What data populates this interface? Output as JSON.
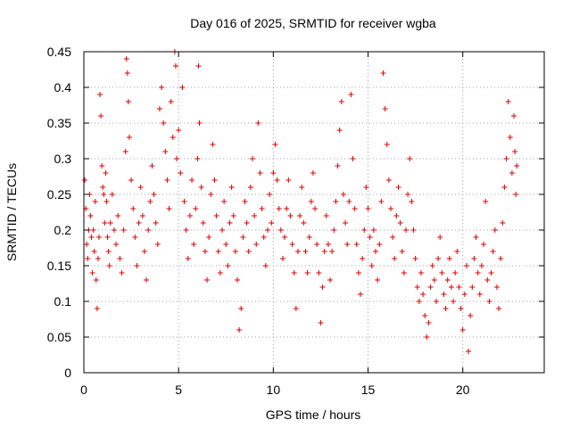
{
  "chart_data": {
    "type": "scatter",
    "title": "Day 016 of 2025, SRMTID for receiver wgba",
    "xlabel": "GPS time / hours",
    "ylabel": "SRMTID / TECUs",
    "xlim": [
      0,
      24.3
    ],
    "ylim": [
      0,
      0.45
    ],
    "grid": true,
    "marker": "plus",
    "color": "#e00000",
    "x_ticks": [
      0,
      5,
      10,
      15,
      20
    ],
    "y_ticks": [
      0,
      0.05,
      0.1,
      0.15,
      0.2,
      0.25,
      0.3,
      0.35,
      0.4,
      0.45
    ],
    "x_tick_labels": [
      "0",
      "5",
      "10",
      "15",
      "20"
    ],
    "y_tick_labels": [
      "0",
      "0.05",
      "0.1",
      "0.15",
      "0.2",
      "0.25",
      "0.3",
      "0.35",
      "0.4",
      "0.45"
    ],
    "series": [
      {
        "name": "SRMTID",
        "points": [
          [
            0.05,
            0.27
          ],
          [
            0.1,
            0.23
          ],
          [
            0.15,
            0.18
          ],
          [
            0.2,
            0.16
          ],
          [
            0.25,
            0.2
          ],
          [
            0.3,
            0.25
          ],
          [
            0.35,
            0.22
          ],
          [
            0.4,
            0.19
          ],
          [
            0.45,
            0.14
          ],
          [
            0.5,
            0.2
          ],
          [
            0.55,
            0.17
          ],
          [
            0.6,
            0.24
          ],
          [
            0.65,
            0.13
          ],
          [
            0.7,
            0.09
          ],
          [
            0.75,
            0.16
          ],
          [
            0.8,
            0.19
          ],
          [
            0.85,
            0.39
          ],
          [
            0.9,
            0.36
          ],
          [
            0.95,
            0.29
          ],
          [
            1.0,
            0.26
          ],
          [
            1.05,
            0.25
          ],
          [
            1.1,
            0.21
          ],
          [
            1.15,
            0.28
          ],
          [
            1.2,
            0.24
          ],
          [
            1.25,
            0.19
          ],
          [
            1.3,
            0.17
          ],
          [
            1.35,
            0.15
          ],
          [
            1.4,
            0.21
          ],
          [
            1.5,
            0.25
          ],
          [
            1.6,
            0.2
          ],
          [
            1.7,
            0.18
          ],
          [
            1.8,
            0.22
          ],
          [
            1.9,
            0.16
          ],
          [
            2.0,
            0.14
          ],
          [
            2.1,
            0.2
          ],
          [
            2.2,
            0.31
          ],
          [
            2.25,
            0.44
          ],
          [
            2.3,
            0.42
          ],
          [
            2.35,
            0.38
          ],
          [
            2.4,
            0.33
          ],
          [
            2.5,
            0.27
          ],
          [
            2.6,
            0.23
          ],
          [
            2.7,
            0.19
          ],
          [
            2.8,
            0.15
          ],
          [
            2.9,
            0.21
          ],
          [
            3.0,
            0.26
          ],
          [
            3.1,
            0.22
          ],
          [
            3.2,
            0.17
          ],
          [
            3.3,
            0.13
          ],
          [
            3.4,
            0.2
          ],
          [
            3.5,
            0.24
          ],
          [
            3.6,
            0.29
          ],
          [
            3.7,
            0.25
          ],
          [
            3.8,
            0.21
          ],
          [
            3.9,
            0.18
          ],
          [
            4.0,
            0.37
          ],
          [
            4.1,
            0.4
          ],
          [
            4.2,
            0.35
          ],
          [
            4.3,
            0.31
          ],
          [
            4.4,
            0.27
          ],
          [
            4.5,
            0.23
          ],
          [
            4.6,
            0.38
          ],
          [
            4.7,
            0.33
          ],
          [
            4.8,
            0.45
          ],
          [
            4.85,
            0.43
          ],
          [
            4.9,
            0.3
          ],
          [
            5.0,
            0.34
          ],
          [
            5.1,
            0.28
          ],
          [
            5.2,
            0.4
          ],
          [
            5.3,
            0.24
          ],
          [
            5.4,
            0.2
          ],
          [
            5.5,
            0.16
          ],
          [
            5.6,
            0.22
          ],
          [
            5.7,
            0.27
          ],
          [
            5.8,
            0.18
          ],
          [
            5.9,
            0.23
          ],
          [
            6.0,
            0.3
          ],
          [
            6.05,
            0.43
          ],
          [
            6.1,
            0.35
          ],
          [
            6.2,
            0.26
          ],
          [
            6.3,
            0.21
          ],
          [
            6.4,
            0.17
          ],
          [
            6.5,
            0.13
          ],
          [
            6.6,
            0.19
          ],
          [
            6.7,
            0.25
          ],
          [
            6.8,
            0.32
          ],
          [
            6.9,
            0.27
          ],
          [
            7.0,
            0.22
          ],
          [
            7.1,
            0.17
          ],
          [
            7.2,
            0.14
          ],
          [
            7.3,
            0.2
          ],
          [
            7.4,
            0.24
          ],
          [
            7.5,
            0.18
          ],
          [
            7.6,
            0.15
          ],
          [
            7.7,
            0.21
          ],
          [
            7.8,
            0.26
          ],
          [
            7.9,
            0.22
          ],
          [
            8.0,
            0.17
          ],
          [
            8.1,
            0.13
          ],
          [
            8.2,
            0.06
          ],
          [
            8.3,
            0.09
          ],
          [
            8.4,
            0.19
          ],
          [
            8.5,
            0.24
          ],
          [
            8.6,
            0.21
          ],
          [
            8.7,
            0.17
          ],
          [
            8.8,
            0.26
          ],
          [
            8.9,
            0.3
          ],
          [
            9.0,
            0.22
          ],
          [
            9.1,
            0.18
          ],
          [
            9.2,
            0.35
          ],
          [
            9.3,
            0.28
          ],
          [
            9.4,
            0.23
          ],
          [
            9.5,
            0.19
          ],
          [
            9.6,
            0.15
          ],
          [
            9.7,
            0.2
          ],
          [
            9.8,
            0.25
          ],
          [
            9.9,
            0.21
          ],
          [
            10.0,
            0.28
          ],
          [
            10.1,
            0.32
          ],
          [
            10.2,
            0.27
          ],
          [
            10.3,
            0.23
          ],
          [
            10.4,
            0.2
          ],
          [
            10.5,
            0.16
          ],
          [
            10.6,
            0.19
          ],
          [
            10.7,
            0.23
          ],
          [
            10.8,
            0.27
          ],
          [
            10.9,
            0.22
          ],
          [
            11.0,
            0.18
          ],
          [
            11.1,
            0.14
          ],
          [
            11.2,
            0.09
          ],
          [
            11.3,
            0.17
          ],
          [
            11.4,
            0.22
          ],
          [
            11.5,
            0.26
          ],
          [
            11.6,
            0.21
          ],
          [
            11.7,
            0.17
          ],
          [
            11.8,
            0.14
          ],
          [
            11.9,
            0.19
          ],
          [
            12.0,
            0.24
          ],
          [
            12.1,
            0.28
          ],
          [
            12.2,
            0.23
          ],
          [
            12.3,
            0.18
          ],
          [
            12.4,
            0.14
          ],
          [
            12.5,
            0.07
          ],
          [
            12.6,
            0.12
          ],
          [
            12.7,
            0.17
          ],
          [
            12.8,
            0.22
          ],
          [
            12.9,
            0.18
          ],
          [
            13.0,
            0.13
          ],
          [
            13.1,
            0.17
          ],
          [
            13.2,
            0.2
          ],
          [
            13.3,
            0.24
          ],
          [
            13.4,
            0.29
          ],
          [
            13.5,
            0.34
          ],
          [
            13.6,
            0.38
          ],
          [
            13.7,
            0.25
          ],
          [
            13.8,
            0.21
          ],
          [
            13.9,
            0.18
          ],
          [
            14.0,
            0.24
          ],
          [
            14.1,
            0.39
          ],
          [
            14.2,
            0.3
          ],
          [
            14.3,
            0.23
          ],
          [
            14.4,
            0.18
          ],
          [
            14.5,
            0.14
          ],
          [
            14.6,
            0.11
          ],
          [
            14.7,
            0.16
          ],
          [
            14.8,
            0.2
          ],
          [
            14.9,
            0.26
          ],
          [
            15.0,
            0.23
          ],
          [
            15.1,
            0.19
          ],
          [
            15.2,
            0.15
          ],
          [
            15.3,
            0.2
          ],
          [
            15.4,
            0.17
          ],
          [
            15.5,
            0.13
          ],
          [
            15.6,
            0.18
          ],
          [
            15.7,
            0.24
          ],
          [
            15.8,
            0.42
          ],
          [
            15.9,
            0.37
          ],
          [
            16.0,
            0.32
          ],
          [
            16.1,
            0.27
          ],
          [
            16.2,
            0.23
          ],
          [
            16.3,
            0.19
          ],
          [
            16.4,
            0.16
          ],
          [
            16.5,
            0.22
          ],
          [
            16.6,
            0.26
          ],
          [
            16.7,
            0.21
          ],
          [
            16.8,
            0.17
          ],
          [
            16.9,
            0.14
          ],
          [
            17.0,
            0.2
          ],
          [
            17.1,
            0.25
          ],
          [
            17.2,
            0.3
          ],
          [
            17.3,
            0.24
          ],
          [
            17.4,
            0.2
          ],
          [
            17.5,
            0.16
          ],
          [
            17.6,
            0.12
          ],
          [
            17.7,
            0.1
          ],
          [
            17.8,
            0.14
          ],
          [
            17.9,
            0.11
          ],
          [
            18.0,
            0.08
          ],
          [
            18.1,
            0.05
          ],
          [
            18.2,
            0.07
          ],
          [
            18.3,
            0.12
          ],
          [
            18.4,
            0.15
          ],
          [
            18.5,
            0.13
          ],
          [
            18.6,
            0.1
          ],
          [
            18.7,
            0.16
          ],
          [
            18.8,
            0.19
          ],
          [
            18.9,
            0.14
          ],
          [
            19.0,
            0.11
          ],
          [
            19.1,
            0.09
          ],
          [
            19.2,
            0.13
          ],
          [
            19.3,
            0.16
          ],
          [
            19.4,
            0.12
          ],
          [
            19.5,
            0.1
          ],
          [
            19.6,
            0.14
          ],
          [
            19.7,
            0.17
          ],
          [
            19.8,
            0.12
          ],
          [
            19.9,
            0.09
          ],
          [
            20.0,
            0.06
          ],
          [
            20.1,
            0.11
          ],
          [
            20.2,
            0.15
          ],
          [
            20.3,
            0.03
          ],
          [
            20.4,
            0.08
          ],
          [
            20.5,
            0.12
          ],
          [
            20.6,
            0.16
          ],
          [
            20.7,
            0.19
          ],
          [
            20.8,
            0.14
          ],
          [
            20.9,
            0.11
          ],
          [
            21.0,
            0.15
          ],
          [
            21.1,
            0.18
          ],
          [
            21.2,
            0.24
          ],
          [
            21.3,
            0.13
          ],
          [
            21.4,
            0.1
          ],
          [
            21.5,
            0.14
          ],
          [
            21.6,
            0.17
          ],
          [
            21.7,
            0.2
          ],
          [
            21.8,
            0.12
          ],
          [
            21.9,
            0.09
          ],
          [
            22.0,
            0.16
          ],
          [
            22.1,
            0.21
          ],
          [
            22.2,
            0.26
          ],
          [
            22.3,
            0.3
          ],
          [
            22.4,
            0.38
          ],
          [
            22.5,
            0.33
          ],
          [
            22.6,
            0.28
          ],
          [
            22.7,
            0.36
          ],
          [
            22.75,
            0.31
          ],
          [
            22.8,
            0.25
          ],
          [
            22.85,
            0.29
          ]
        ]
      }
    ]
  }
}
